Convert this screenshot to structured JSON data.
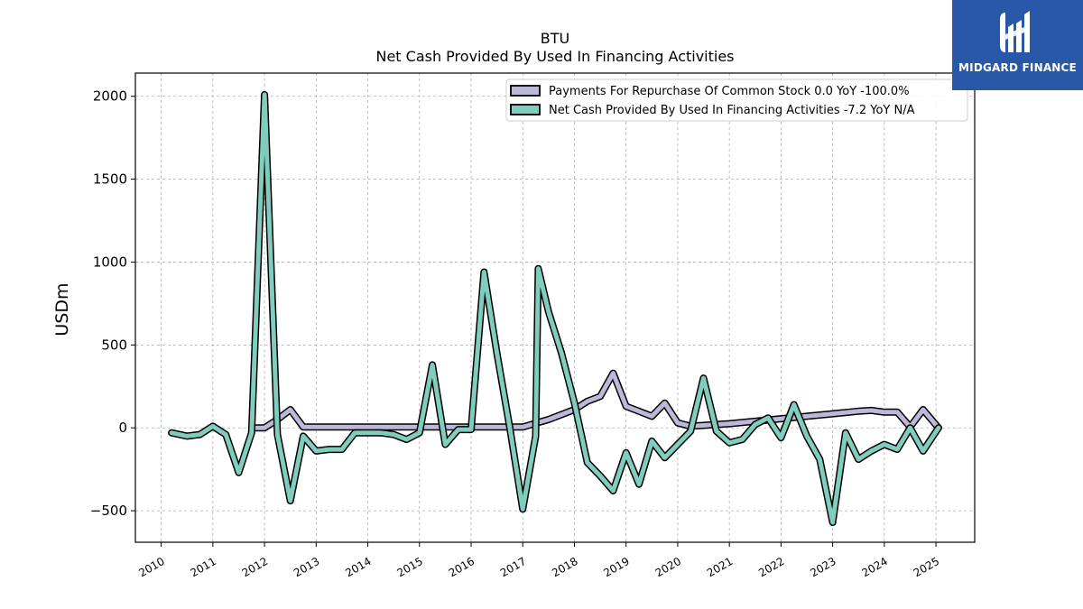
{
  "header": {
    "ticker": "BTU",
    "subtitle": "Net Cash Provided By Used In Financing Activities"
  },
  "logo": {
    "brand_text": "MIDGARD FINANCE",
    "background": "#2958a8"
  },
  "colors": {
    "repurchase_line": "#bcb8d8",
    "financing_line": "#80cdbe",
    "outline": "#000000",
    "grid": "#b0b0b0"
  },
  "chart_data": {
    "type": "line",
    "title": "BTU",
    "subtitle": "Net Cash Provided By Used In Financing Activities",
    "xlabel": "",
    "ylabel": "USDm",
    "xlim": [
      2009.5,
      2025.75
    ],
    "ylim": [
      -690,
      2140
    ],
    "x_ticks": [
      "2010",
      "2011",
      "2012",
      "2013",
      "2014",
      "2015",
      "2016",
      "2017",
      "2018",
      "2019",
      "2020",
      "2021",
      "2022",
      "2023",
      "2024",
      "2025"
    ],
    "y_ticks": [
      -500,
      0,
      500,
      1000,
      1500,
      2000
    ],
    "y_tick_labels": [
      "−500",
      "0",
      "500",
      "1000",
      "1500",
      "2000"
    ],
    "grid": true,
    "legend_position": "top-right",
    "series": [
      {
        "name": "Payments For Repurchase Of Common Stock  0.0 YoY -100.0%",
        "color": "#bcb8d8",
        "points": [
          [
            2011.75,
            0
          ],
          [
            2012.0,
            0
          ],
          [
            2012.25,
            50
          ],
          [
            2012.5,
            110
          ],
          [
            2012.75,
            5
          ],
          [
            2013.0,
            5
          ],
          [
            2014.0,
            5
          ],
          [
            2015.0,
            5
          ],
          [
            2016.0,
            5
          ],
          [
            2017.0,
            5
          ],
          [
            2017.5,
            50
          ],
          [
            2018.0,
            110
          ],
          [
            2018.25,
            160
          ],
          [
            2018.5,
            190
          ],
          [
            2018.75,
            330
          ],
          [
            2019.0,
            130
          ],
          [
            2019.25,
            100
          ],
          [
            2019.5,
            70
          ],
          [
            2019.75,
            150
          ],
          [
            2020.0,
            30
          ],
          [
            2020.25,
            10
          ],
          [
            2020.5,
            15
          ],
          [
            2020.75,
            20
          ],
          [
            2021.0,
            25
          ],
          [
            2021.5,
            40
          ],
          [
            2022.0,
            55
          ],
          [
            2022.5,
            70
          ],
          [
            2023.0,
            85
          ],
          [
            2023.5,
            100
          ],
          [
            2023.75,
            105
          ],
          [
            2024.0,
            95
          ],
          [
            2024.25,
            95
          ],
          [
            2024.5,
            5
          ],
          [
            2024.75,
            110
          ],
          [
            2025.05,
            0
          ]
        ]
      },
      {
        "name": "Net Cash Provided By Used In Financing Activities  -7.2 YoY N/A",
        "color": "#80cdbe",
        "points": [
          [
            2010.2,
            -30
          ],
          [
            2010.5,
            -50
          ],
          [
            2010.75,
            -40
          ],
          [
            2011.0,
            10
          ],
          [
            2011.25,
            -40
          ],
          [
            2011.5,
            -270
          ],
          [
            2011.75,
            -30
          ],
          [
            2012.0,
            2010
          ],
          [
            2012.25,
            -40
          ],
          [
            2012.5,
            -440
          ],
          [
            2012.75,
            -50
          ],
          [
            2013.0,
            -140
          ],
          [
            2013.25,
            -130
          ],
          [
            2013.5,
            -130
          ],
          [
            2013.75,
            -30
          ],
          [
            2014.0,
            -30
          ],
          [
            2014.25,
            -30
          ],
          [
            2014.5,
            -40
          ],
          [
            2014.75,
            -70
          ],
          [
            2015.0,
            -30
          ],
          [
            2015.25,
            380
          ],
          [
            2015.5,
            -100
          ],
          [
            2015.75,
            -10
          ],
          [
            2016.0,
            -10
          ],
          [
            2016.25,
            940
          ],
          [
            2016.5,
            450
          ],
          [
            2016.75,
            0
          ],
          [
            2017.0,
            -490
          ],
          [
            2017.25,
            -50
          ],
          [
            2017.3,
            960
          ],
          [
            2017.5,
            700
          ],
          [
            2017.75,
            450
          ],
          [
            2018.0,
            150
          ],
          [
            2018.25,
            -210
          ],
          [
            2018.5,
            -290
          ],
          [
            2018.75,
            -380
          ],
          [
            2019.0,
            -150
          ],
          [
            2019.25,
            -340
          ],
          [
            2019.5,
            -80
          ],
          [
            2019.75,
            -180
          ],
          [
            2020.0,
            -100
          ],
          [
            2020.25,
            -20
          ],
          [
            2020.5,
            300
          ],
          [
            2020.75,
            -20
          ],
          [
            2021.0,
            -90
          ],
          [
            2021.25,
            -70
          ],
          [
            2021.5,
            20
          ],
          [
            2021.75,
            60
          ],
          [
            2022.0,
            -60
          ],
          [
            2022.25,
            140
          ],
          [
            2022.5,
            -50
          ],
          [
            2022.75,
            -190
          ],
          [
            2023.0,
            -570
          ],
          [
            2023.25,
            -30
          ],
          [
            2023.5,
            -190
          ],
          [
            2023.75,
            -140
          ],
          [
            2024.0,
            -100
          ],
          [
            2024.25,
            -130
          ],
          [
            2024.5,
            0
          ],
          [
            2024.75,
            -140
          ],
          [
            2025.05,
            0
          ]
        ]
      }
    ]
  }
}
